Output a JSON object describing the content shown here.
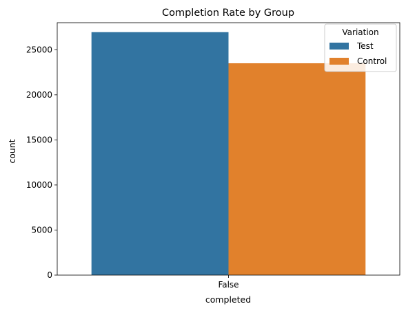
{
  "chart_data": {
    "type": "bar",
    "title": "Completion Rate by Group",
    "xlabel": "completed",
    "ylabel": "count",
    "categories": [
      "False"
    ],
    "series": [
      {
        "name": "Test",
        "values": [
          26950
        ],
        "color": "#3274a1"
      },
      {
        "name": "Control",
        "values": [
          23500
        ],
        "color": "#e1812c"
      }
    ],
    "ylim": [
      0,
      28000
    ],
    "yticks": [
      0,
      5000,
      10000,
      15000,
      20000,
      25000
    ],
    "legend": {
      "title": "Variation",
      "placement": "top-right"
    },
    "grid": false
  }
}
